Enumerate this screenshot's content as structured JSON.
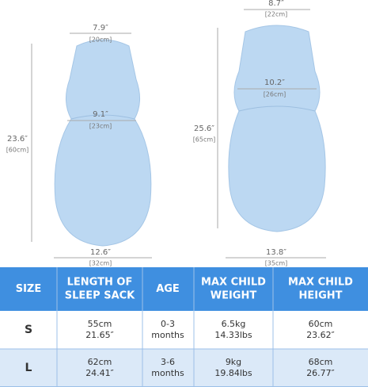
{
  "small": {
    "width": {
      "in": "7.9″",
      "cm": "[20cm]"
    },
    "chest": {
      "in": "9.1″",
      "cm": "[23cm]"
    },
    "length": {
      "in": "23.6″",
      "cm": "[60cm]"
    },
    "bottom": {
      "in": "12.6″",
      "cm": "[32cm]"
    }
  },
  "large": {
    "width": {
      "in": "8.7″",
      "cm": "[22cm]"
    },
    "chest": {
      "in": "10.2″",
      "cm": "[26cm]"
    },
    "length": {
      "in": "25.6″",
      "cm": "[65cm]"
    },
    "bottom": {
      "in": "13.8″",
      "cm": "[35cm]"
    }
  },
  "table": {
    "header": [
      [
        "SIZE"
      ],
      [
        "LENGTH OF",
        "SLEEP SACK"
      ],
      [
        "AGE"
      ],
      [
        "MAX CHILD",
        "WEIGHT"
      ],
      [
        "MAX CHILD",
        "HEIGHT"
      ]
    ],
    "rows": [
      [
        [
          "S"
        ],
        [
          "55cm",
          "21.65″"
        ],
        [
          "0-3",
          "months"
        ],
        [
          "6.5kg",
          "14.33lbs"
        ],
        [
          "60cm",
          "23.62″"
        ]
      ],
      [
        [
          "L"
        ],
        [
          "62cm",
          "24.41″"
        ],
        [
          "3-6",
          "months"
        ],
        [
          "9kg",
          "19.84lbs"
        ],
        [
          "68cm",
          "26.77″"
        ]
      ]
    ]
  }
}
